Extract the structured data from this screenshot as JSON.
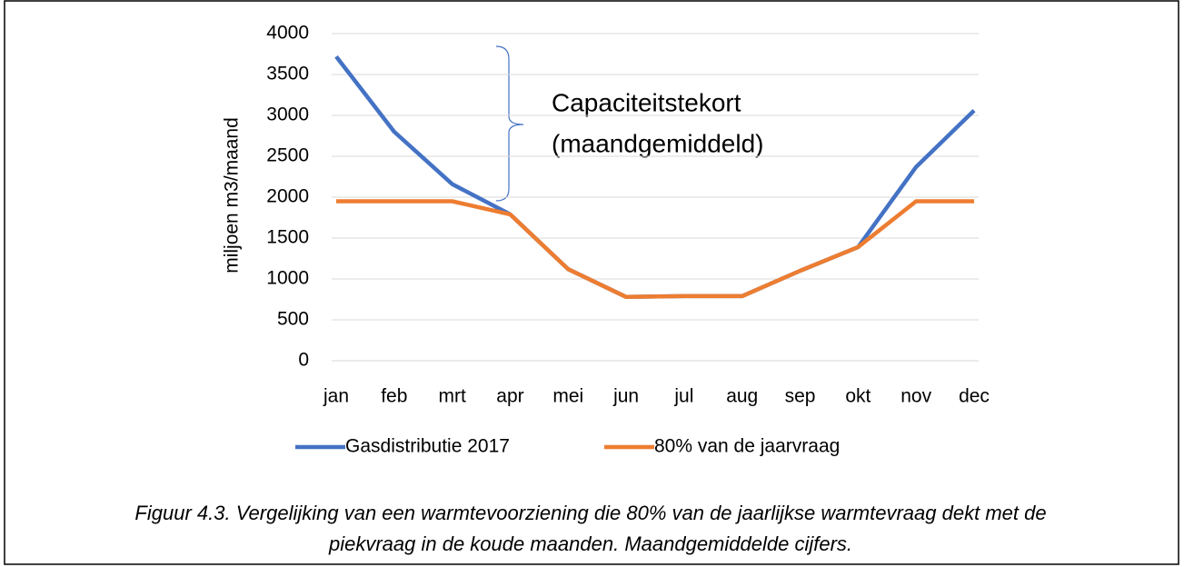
{
  "chart_data": {
    "type": "line",
    "categories": [
      "jan",
      "feb",
      "mrt",
      "apr",
      "mei",
      "jun",
      "jul",
      "aug",
      "sep",
      "okt",
      "nov",
      "dec"
    ],
    "series": [
      {
        "name": "Gasdistributie 2017",
        "color": "#4472c4",
        "values": [
          3720,
          2800,
          2160,
          1790,
          1120,
          780,
          790,
          790,
          1100,
          1390,
          2370,
          3060
        ]
      },
      {
        "name": "80% van de jaarvraag",
        "color": "#ed7d31",
        "values": [
          1950,
          1950,
          1950,
          1790,
          1120,
          780,
          790,
          790,
          1100,
          1390,
          1950,
          1950
        ]
      }
    ],
    "ylabel": "miljoen m3/maand",
    "ylim": [
      0,
      4000
    ],
    "yticks": [
      0,
      500,
      1000,
      1500,
      2000,
      2500,
      3000,
      3500,
      4000
    ],
    "grid": true,
    "legend": "bottom",
    "annotations": [
      "Capaciteitstekort",
      "(maandgemiddeld)"
    ],
    "caption": [
      "Figuur 4.3. Vergelijking van een warmtevoorziening die 80% van de jaarlijkse warmtevraag dekt met de",
      "piekvraag in de koude maanden. Maandgemiddelde cijfers."
    ]
  }
}
